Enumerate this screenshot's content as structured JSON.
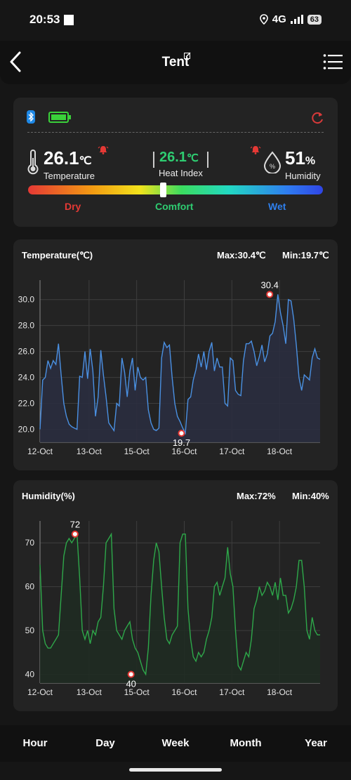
{
  "status": {
    "time": "20:53",
    "network": "4G",
    "battery": "63"
  },
  "header": {
    "title": "Tent"
  },
  "sensor": {
    "temperature": {
      "value": "26.1",
      "unit": "℃",
      "label": "Temperature"
    },
    "heat_index": {
      "value": "26.1",
      "unit": "℃",
      "label": "Heat Index"
    },
    "humidity": {
      "value": "51",
      "unit": "%",
      "label": "Humidity"
    },
    "scale": {
      "dry": "Dry",
      "comfort": "Comfort",
      "wet": "Wet",
      "position": 0.46
    },
    "colors": {
      "bluetooth": "#1e88e5",
      "battery": "#3ad13a",
      "refresh": "#d83a3a",
      "alarm": "#e53935",
      "heat_index": "#2ecc71",
      "dry": "#e53935",
      "comfort": "#2ecc71",
      "wet": "#2f80ed"
    }
  },
  "temp_chart": {
    "title": "Temperature(℃)",
    "max_label": "Max:30.4℃",
    "min_label": "Min:19.7℃"
  },
  "hum_chart": {
    "title": "Humidity(%)",
    "max_label": "Max:72%",
    "min_label": "Min:40%"
  },
  "chart_data": [
    {
      "type": "area",
      "title": "Temperature(℃)",
      "color": "#4a90e2",
      "fill": "#2a2d3f",
      "x_ticks": [
        "12-Oct",
        "13-Oct",
        "15-Oct",
        "16-Oct",
        "17-Oct",
        "18-Oct"
      ],
      "y_ticks": [
        "20.0",
        "22.0",
        "24.0",
        "26.0",
        "28.0",
        "30.0"
      ],
      "ylim": [
        19.0,
        31.5
      ],
      "max": {
        "x": 0.82,
        "y": 30.4,
        "label": "30.4"
      },
      "min": {
        "x": 0.505,
        "y": 19.7,
        "label": "19.7"
      },
      "values": [
        20.0,
        23.8,
        24.0,
        25.3,
        24.7,
        25.3,
        25.0,
        26.6,
        24.2,
        22.0,
        21.0,
        20.4,
        20.2,
        20.1,
        20.0,
        24.1,
        24.0,
        26.0,
        23.9,
        26.2,
        24.5,
        21.0,
        22.5,
        26.1,
        24.2,
        22.5,
        20.5,
        20.2,
        19.9,
        22.0,
        21.8,
        25.5,
        24.4,
        22.5,
        24.5,
        25.5,
        23.0,
        24.8,
        24.0,
        23.8,
        24.0,
        21.5,
        20.5,
        20.0,
        19.9,
        20.1,
        25.5,
        26.7,
        26.3,
        26.5,
        24.0,
        22.0,
        21.0,
        20.6,
        20.1,
        19.7,
        22.3,
        22.5,
        23.8,
        24.6,
        25.8,
        24.8,
        26.0,
        24.6,
        26.0,
        26.7,
        24.5,
        25.5,
        24.8,
        24.8,
        22.0,
        21.8,
        25.5,
        25.3,
        23.0,
        22.7,
        22.6,
        25.3,
        26.6,
        26.6,
        26.8,
        26.0,
        24.9,
        25.6,
        26.5,
        25.2,
        25.8,
        27.2,
        27.4,
        28.3,
        30.4,
        29.0,
        28.0,
        26.6,
        30.0,
        29.9,
        28.5,
        26.5,
        24.0,
        23.0,
        24.2,
        24.0,
        23.8,
        25.5,
        26.2,
        25.5,
        25.4
      ]
    },
    {
      "type": "area",
      "title": "Humidity(%)",
      "color": "#2ea84a",
      "fill": "#1f2b22",
      "x_ticks": [
        "12-Oct",
        "13-Oct",
        "15-Oct",
        "16-Oct",
        "17-Oct",
        "18-Oct"
      ],
      "y_ticks": [
        "40",
        "50",
        "60",
        "70"
      ],
      "ylim": [
        38,
        75
      ],
      "max": {
        "x": 0.125,
        "y": 72,
        "label": "72"
      },
      "min": {
        "x": 0.325,
        "y": 40,
        "label": "40"
      },
      "values": [
        65,
        50,
        47,
        46,
        46,
        47,
        48,
        49,
        58,
        67,
        70,
        71,
        70,
        71,
        72,
        62,
        50,
        48,
        50,
        47,
        50,
        49,
        52,
        53,
        60,
        70,
        71,
        72,
        55,
        50,
        49,
        48,
        50,
        51,
        52,
        48,
        46,
        45,
        43,
        41,
        40,
        46,
        58,
        66,
        70,
        68,
        60,
        53,
        48,
        47,
        49,
        50,
        51,
        70,
        72,
        72,
        55,
        48,
        44,
        43,
        45,
        44,
        45,
        48,
        50,
        53,
        60,
        61,
        58,
        60,
        62,
        69,
        63,
        60,
        50,
        42,
        41,
        43,
        45,
        44,
        48,
        55,
        57,
        60,
        58,
        59,
        61,
        60,
        58,
        61,
        57,
        62,
        58,
        58,
        54,
        55,
        57,
        60,
        66,
        66,
        60,
        50,
        48,
        53,
        50,
        49,
        49
      ]
    }
  ],
  "tabs": [
    "Hour",
    "Day",
    "Week",
    "Month",
    "Year"
  ]
}
